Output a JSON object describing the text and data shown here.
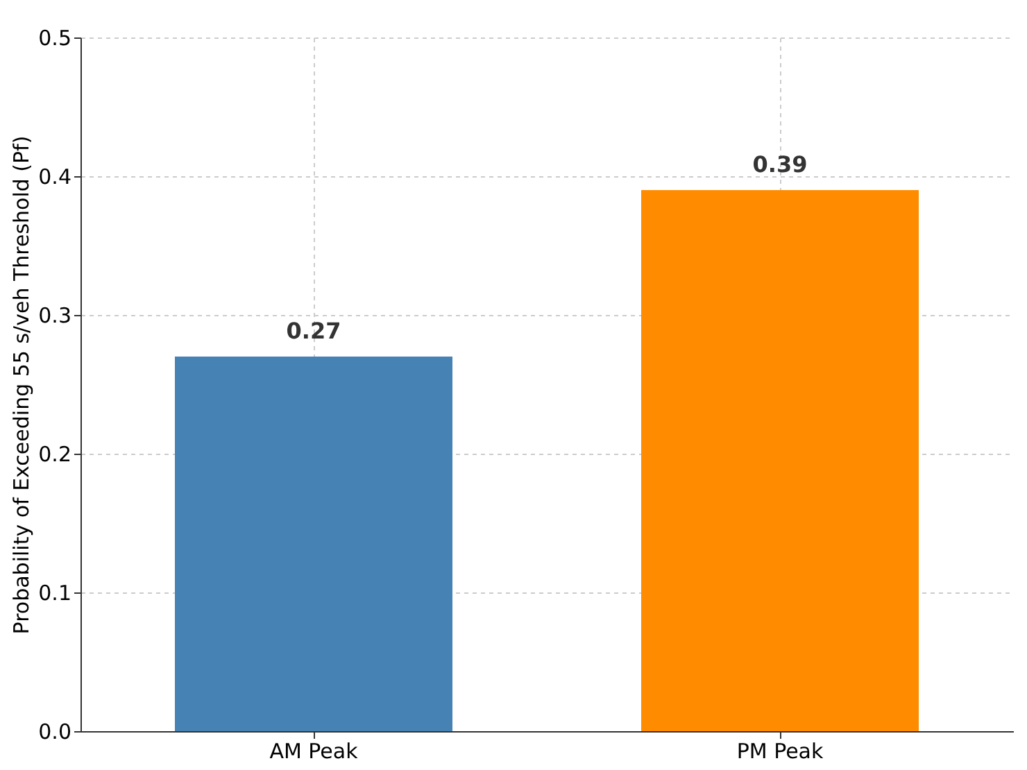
{
  "chart_data": {
    "type": "bar",
    "ylabel": "Probability of Exceeding 55 s/veh Threshold (Pf)",
    "categories": [
      "AM Peak",
      "PM Peak"
    ],
    "values": [
      0.27,
      0.39
    ],
    "colors": [
      "#4682b4",
      "#ff8c00"
    ],
    "ylim": [
      0,
      0.5
    ],
    "yticks": [
      {
        "value": 0,
        "label": "0.0"
      },
      0.1,
      0.2,
      0.3,
      0.4,
      0.5
    ],
    "grid": true,
    "data_labels": true
  }
}
